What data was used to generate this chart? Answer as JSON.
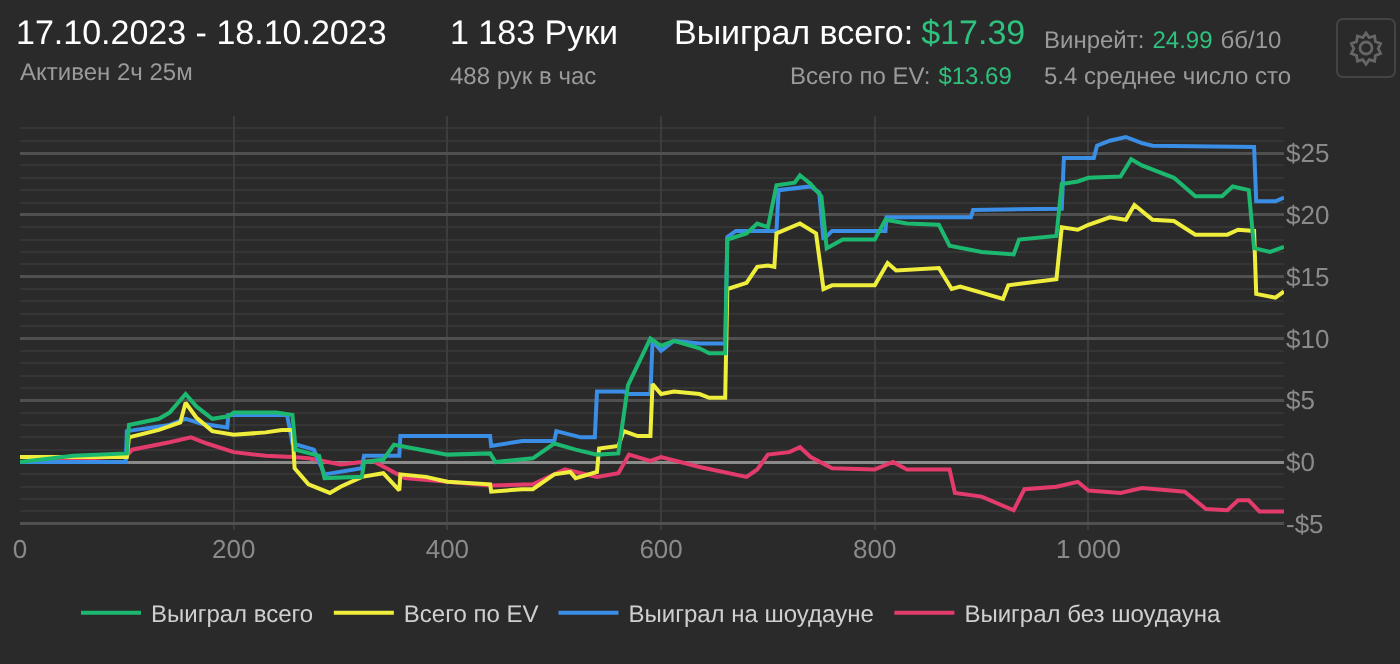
{
  "chart_data": {
    "type": "line",
    "title": "17.10.2023 - 18.10.2023",
    "subtitle": "Активен 2ч 25м",
    "annotations": [
      "1 183 Руки",
      "488 рук в час",
      "Выиграл всего:",
      "$17.39",
      "Всего по EV:",
      "$13.69",
      "Винрейт:",
      "24.99",
      "бб/10",
      "5.4 среднее число сто"
    ],
    "xlim": [
      0,
      1183
    ],
    "ylim": [
      -5.5,
      28
    ],
    "xticks": [
      0,
      200,
      400,
      600,
      800,
      {
        "value": 1000,
        "label": "1 000"
      }
    ],
    "yticks": [
      {
        "value": -5,
        "label": "-$5"
      },
      {
        "value": 0,
        "label": "$0"
      },
      {
        "value": 5,
        "label": "$5"
      },
      {
        "value": 10,
        "label": "$10"
      },
      {
        "value": 15,
        "label": "$15"
      },
      {
        "value": 20,
        "label": "$20"
      },
      {
        "value": 25,
        "label": "$25"
      }
    ],
    "grid": true,
    "legend": "bottom",
    "marker": "none",
    "line_style": "solid",
    "series": [
      {
        "name": "Выиграл всего",
        "color": "#1db870",
        "x": [
          0,
          50,
          100,
          102,
          130,
          140,
          155,
          165,
          180,
          195,
          200,
          240,
          255,
          258,
          280,
          285,
          320,
          322,
          340,
          350,
          400,
          440,
          445,
          480,
          500,
          520,
          540,
          560,
          569,
          590,
          600,
          612,
          636,
          645,
          660,
          662,
          680,
          690,
          700,
          708,
          725,
          730,
          740,
          750,
          755,
          770,
          800,
          810,
          830,
          860,
          870,
          900,
          930,
          935,
          970,
          975,
          990,
          1000,
          1030,
          1040,
          1050,
          1080,
          1100,
          1125,
          1135,
          1150,
          1155,
          1170,
          1183
        ],
        "values": [
          0,
          0.5,
          0.7,
          3,
          3.5,
          4,
          5.5,
          4.5,
          3.5,
          3.7,
          4,
          4,
          3.8,
          1,
          0.5,
          -1.3,
          -1.2,
          0,
          0.2,
          1.4,
          0.6,
          0.7,
          0,
          0.3,
          1.5,
          1,
          0.6,
          0.7,
          6.2,
          10,
          9.4,
          9.8,
          9.2,
          8.8,
          8.8,
          18,
          18.5,
          19.3,
          19,
          22.4,
          22.6,
          23.2,
          22.5,
          21.5,
          17.3,
          18,
          18,
          19.6,
          19.3,
          19.2,
          17.5,
          17,
          16.8,
          18,
          18.3,
          22.5,
          22.7,
          23,
          23.1,
          24.5,
          24,
          23,
          21.5,
          21.5,
          22.3,
          22,
          17.3,
          17,
          17.4
        ]
      },
      {
        "name": "Всего по EV",
        "color": "#f0ee3c",
        "x": [
          0,
          100,
          102,
          130,
          150,
          155,
          165,
          180,
          200,
          230,
          245,
          255,
          257,
          270,
          290,
          300,
          320,
          340,
          355,
          356,
          380,
          400,
          440,
          441,
          470,
          480,
          500,
          515,
          520,
          540,
          542,
          560,
          565,
          578,
          590,
          592,
          600,
          612,
          636,
          645,
          660,
          662,
          680,
          690,
          700,
          706,
          708,
          730,
          745,
          752,
          760,
          800,
          812,
          820,
          860,
          872,
          880,
          920,
          925,
          970,
          975,
          990,
          1000,
          1020,
          1035,
          1043,
          1060,
          1080,
          1100,
          1130,
          1140,
          1155,
          1157,
          1175,
          1183
        ],
        "values": [
          0.4,
          0.4,
          2,
          2.6,
          3.2,
          4.8,
          3.6,
          2.5,
          2.2,
          2.4,
          2.6,
          2.6,
          -0.5,
          -1.8,
          -2.5,
          -2,
          -1.2,
          -0.9,
          -2.3,
          -1,
          -1.2,
          -1.6,
          -1.8,
          -2.4,
          -2.2,
          -2.2,
          -1,
          -0.8,
          -1.3,
          -0.8,
          1.1,
          1.3,
          2.5,
          2.1,
          2.1,
          6.3,
          5.5,
          5.7,
          5.5,
          5.2,
          5.2,
          14,
          14.5,
          15.8,
          15.9,
          15.8,
          18.5,
          19.3,
          18.5,
          14,
          14.3,
          14.3,
          16.1,
          15.5,
          15.7,
          14,
          14.2,
          13.2,
          14.3,
          14.8,
          19,
          18.8,
          19.2,
          19.8,
          19.6,
          20.8,
          19.6,
          19.5,
          18.4,
          18.4,
          18.8,
          18.7,
          13.6,
          13.3,
          13.8
        ]
      },
      {
        "name": "Выиграл на шоудауне",
        "color": "#3a8ee6",
        "x": [
          0,
          99,
          100,
          140,
          155,
          170,
          194,
          195,
          250,
          255,
          275,
          285,
          320,
          322,
          355,
          356,
          440,
          441,
          470,
          500,
          502,
          525,
          538,
          540,
          565,
          570,
          590,
          592,
          600,
          612,
          636,
          660,
          662,
          670,
          708,
          710,
          740,
          748,
          752,
          760,
          810,
          811,
          890,
          892,
          975,
          977,
          1005,
          1008,
          1020,
          1035,
          1050,
          1060,
          1155,
          1157,
          1175,
          1183
        ],
        "values": [
          0,
          0,
          2.5,
          3,
          3.5,
          3.1,
          2.8,
          3.8,
          3.8,
          1.5,
          1,
          -1,
          -0.5,
          0.5,
          0.5,
          2.1,
          2.1,
          1.3,
          1.7,
          1.7,
          2.5,
          2,
          2,
          5.7,
          5.7,
          5.5,
          5.5,
          9.8,
          9,
          9.8,
          9.6,
          9.6,
          18.2,
          18.7,
          18.7,
          22,
          22.3,
          21.8,
          18,
          18.7,
          18.7,
          19.8,
          19.8,
          20.4,
          20.5,
          24.6,
          24.6,
          25.6,
          26,
          26.3,
          25.8,
          25.6,
          25.5,
          21.1,
          21.1,
          21.4
        ]
      },
      {
        "name": "Выиграл без шоудауна",
        "color": "#e23b6c",
        "x": [
          0,
          50,
          100,
          105,
          140,
          160,
          175,
          200,
          230,
          255,
          270,
          300,
          330,
          360,
          400,
          440,
          480,
          510,
          540,
          560,
          570,
          590,
          600,
          636,
          680,
          690,
          700,
          720,
          730,
          740,
          760,
          800,
          817,
          830,
          870,
          875,
          900,
          930,
          940,
          970,
          990,
          1000,
          1030,
          1050,
          1090,
          1110,
          1130,
          1140,
          1150,
          1160,
          1183
        ],
        "values": [
          0,
          0.2,
          0.5,
          1,
          1.6,
          2,
          1.5,
          0.8,
          0.5,
          0.4,
          0.3,
          -0.2,
          0.1,
          -1.3,
          -1.6,
          -1.9,
          -1.8,
          -0.6,
          -1.2,
          -0.9,
          0.6,
          0.1,
          0.4,
          -0.4,
          -1.2,
          -0.6,
          0.6,
          0.8,
          1.2,
          0.4,
          -0.5,
          -0.6,
          0,
          -0.6,
          -0.6,
          -2.5,
          -2.8,
          -3.9,
          -2.2,
          -2,
          -1.6,
          -2.3,
          -2.5,
          -2.1,
          -2.4,
          -3.8,
          -3.9,
          -3.1,
          -3.1,
          -4,
          -4
        ]
      }
    ]
  }
}
